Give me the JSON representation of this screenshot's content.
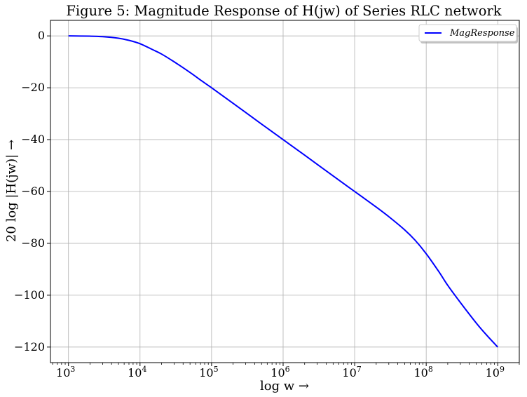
{
  "chart_data": {
    "type": "line",
    "title": "Figure 5: Magnitude Response of H(jw) of Series RLC network",
    "xlabel": "log w →",
    "ylabel": "20 log |H(jw)| →",
    "x_scale": "log",
    "xlim": [
      560,
      2000000000
    ],
    "ylim": [
      -126,
      6
    ],
    "grid": true,
    "legend_position": "top-right",
    "x_ticks": [
      {
        "value": 1000,
        "base": "10",
        "exp": "3"
      },
      {
        "value": 10000,
        "base": "10",
        "exp": "4"
      },
      {
        "value": 100000,
        "base": "10",
        "exp": "5"
      },
      {
        "value": 1000000,
        "base": "10",
        "exp": "6"
      },
      {
        "value": 10000000,
        "base": "10",
        "exp": "7"
      },
      {
        "value": 100000000,
        "base": "10",
        "exp": "8"
      },
      {
        "value": 1000000000,
        "base": "10",
        "exp": "9"
      }
    ],
    "y_ticks": [
      {
        "value": 0,
        "label": "0"
      },
      {
        "value": -20,
        "label": "−20"
      },
      {
        "value": -40,
        "label": "−40"
      },
      {
        "value": -60,
        "label": "−60"
      },
      {
        "value": -80,
        "label": "−80"
      },
      {
        "value": -100,
        "label": "−100"
      },
      {
        "value": -120,
        "label": "−120"
      }
    ],
    "series": [
      {
        "name": "MagResponse",
        "color": "#0000ff",
        "x": [
          1000,
          2000,
          3000,
          5000,
          7000,
          10000,
          15000,
          20000,
          30000,
          50000,
          70000,
          100000,
          200000,
          500000,
          1000000,
          2000000,
          5000000,
          10000000,
          20000000,
          30000000,
          50000000,
          70000000,
          100000000,
          150000000,
          200000000,
          300000000,
          500000000,
          700000000,
          1000000000
        ],
        "values": [
          0,
          -0.1,
          -0.3,
          -0.9,
          -1.7,
          -3.0,
          -5.3,
          -7.0,
          -10.0,
          -14.1,
          -17.0,
          -20.0,
          -26.0,
          -34.0,
          -40.0,
          -46.0,
          -54.0,
          -60.0,
          -66.0,
          -69.7,
          -74.8,
          -78.8,
          -84.0,
          -90.9,
          -96.2,
          -102.8,
          -110.7,
          -115.4,
          -120.0
        ]
      }
    ]
  }
}
